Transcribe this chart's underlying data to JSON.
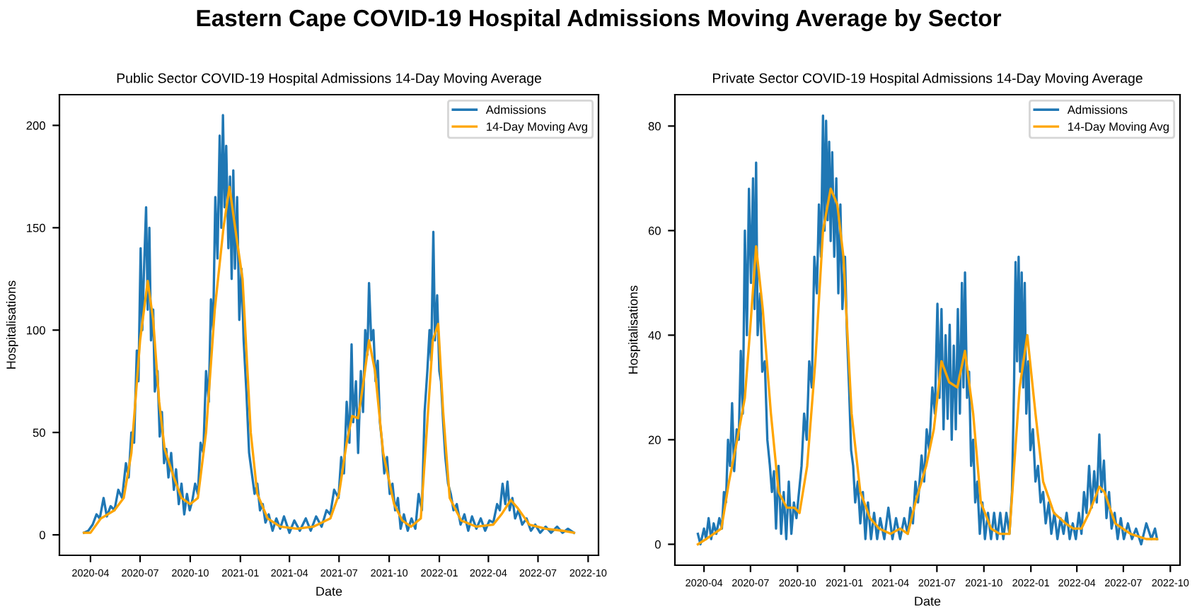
{
  "chart_data": [
    {
      "type": "other",
      "title": "Eastern Cape COVID-19 Hospital Admissions Moving Average by Sector"
    },
    {
      "type": "line",
      "title": "Public Sector COVID-19 Hospital Admissions 14-Day Moving Average",
      "xlabel": "Date",
      "ylabel": "Hospitalisations",
      "legend": "top right",
      "grid": false,
      "xlim": [
        "2020-02-04",
        "2022-10-20"
      ],
      "xticks": [
        "2020-04",
        "2020-07",
        "2020-10",
        "2021-01",
        "2021-04",
        "2021-07",
        "2021-10",
        "2022-01",
        "2022-04",
        "2022-07",
        "2022-10"
      ],
      "ylim": [
        -10,
        215
      ],
      "yticks": [
        0,
        50,
        100,
        150,
        200
      ],
      "series": [
        {
          "name": "Admissions",
          "color": "#1f77b4",
          "x": [
            "2020-03-20",
            "2020-03-28",
            "2020-04-05",
            "2020-04-12",
            "2020-04-18",
            "2020-04-25",
            "2020-05-01",
            "2020-05-08",
            "2020-05-15",
            "2020-05-22",
            "2020-05-29",
            "2020-06-05",
            "2020-06-10",
            "2020-06-15",
            "2020-06-20",
            "2020-06-25",
            "2020-06-28",
            "2020-07-02",
            "2020-07-05",
            "2020-07-08",
            "2020-07-12",
            "2020-07-15",
            "2020-07-18",
            "2020-07-21",
            "2020-07-25",
            "2020-07-28",
            "2020-08-02",
            "2020-08-06",
            "2020-08-10",
            "2020-08-14",
            "2020-08-18",
            "2020-08-22",
            "2020-08-27",
            "2020-09-01",
            "2020-09-05",
            "2020-09-10",
            "2020-09-15",
            "2020-09-20",
            "2020-09-25",
            "2020-09-30",
            "2020-10-05",
            "2020-10-10",
            "2020-10-15",
            "2020-10-20",
            "2020-10-25",
            "2020-10-30",
            "2020-11-04",
            "2020-11-08",
            "2020-11-12",
            "2020-11-16",
            "2020-11-20",
            "2020-11-24",
            "2020-11-27",
            "2020-11-30",
            "2020-12-03",
            "2020-12-06",
            "2020-12-10",
            "2020-12-13",
            "2020-12-16",
            "2020-12-19",
            "2020-12-22",
            "2020-12-26",
            "2020-12-30",
            "2021-01-03",
            "2021-01-07",
            "2021-01-12",
            "2021-01-17",
            "2021-01-22",
            "2021-01-27",
            "2021-02-01",
            "2021-02-06",
            "2021-02-11",
            "2021-02-16",
            "2021-02-22",
            "2021-03-01",
            "2021-03-08",
            "2021-03-15",
            "2021-03-22",
            "2021-04-01",
            "2021-04-10",
            "2021-04-20",
            "2021-05-01",
            "2021-05-10",
            "2021-05-20",
            "2021-05-30",
            "2021-06-08",
            "2021-06-15",
            "2021-06-22",
            "2021-06-30",
            "2021-07-05",
            "2021-07-10",
            "2021-07-15",
            "2021-07-20",
            "2021-07-24",
            "2021-07-27",
            "2021-08-01",
            "2021-08-05",
            "2021-08-10",
            "2021-08-14",
            "2021-08-18",
            "2021-08-22",
            "2021-08-25",
            "2021-08-29",
            "2021-09-02",
            "2021-09-06",
            "2021-09-10",
            "2021-09-14",
            "2021-09-18",
            "2021-09-22",
            "2021-09-27",
            "2021-10-02",
            "2021-10-07",
            "2021-10-12",
            "2021-10-17",
            "2021-10-22",
            "2021-10-28",
            "2021-11-04",
            "2021-11-11",
            "2021-11-18",
            "2021-11-24",
            "2021-11-30",
            "2021-12-05",
            "2021-12-10",
            "2021-12-14",
            "2021-12-17",
            "2021-12-21",
            "2021-12-24",
            "2021-12-28",
            "2022-01-01",
            "2022-01-04",
            "2022-01-08",
            "2022-01-12",
            "2022-01-17",
            "2022-01-22",
            "2022-01-27",
            "2022-02-02",
            "2022-02-09",
            "2022-02-16",
            "2022-02-23",
            "2022-03-02",
            "2022-03-10",
            "2022-03-18",
            "2022-03-26",
            "2022-04-03",
            "2022-04-10",
            "2022-04-17",
            "2022-04-22",
            "2022-04-27",
            "2022-05-02",
            "2022-05-06",
            "2022-05-10",
            "2022-05-15",
            "2022-05-20",
            "2022-05-26",
            "2022-06-02",
            "2022-06-10",
            "2022-06-18",
            "2022-06-26",
            "2022-07-05",
            "2022-07-15",
            "2022-07-25",
            "2022-08-05",
            "2022-08-15",
            "2022-08-25",
            "2022-09-05"
          ],
          "values": [
            1,
            2,
            5,
            10,
            8,
            18,
            9,
            14,
            12,
            22,
            18,
            35,
            28,
            50,
            45,
            90,
            75,
            140,
            100,
            128,
            160,
            110,
            150,
            95,
            110,
            70,
            80,
            48,
            60,
            35,
            42,
            28,
            40,
            22,
            32,
            15,
            25,
            10,
            20,
            12,
            17,
            25,
            20,
            45,
            40,
            80,
            65,
            115,
            100,
            165,
            135,
            195,
            150,
            205,
            160,
            190,
            140,
            175,
            125,
            178,
            130,
            165,
            105,
            130,
            95,
            70,
            40,
            30,
            20,
            25,
            12,
            15,
            6,
            10,
            2,
            8,
            3,
            9,
            1,
            7,
            2,
            8,
            2,
            9,
            4,
            12,
            10,
            22,
            18,
            38,
            30,
            65,
            45,
            93,
            55,
            75,
            40,
            80,
            60,
            100,
            88,
            123,
            95,
            100,
            75,
            85,
            55,
            45,
            30,
            38,
            20,
            25,
            12,
            18,
            3,
            10,
            2,
            8,
            3,
            20,
            12,
            60,
            80,
            100,
            85,
            148,
            95,
            117,
            80,
            75,
            55,
            38,
            25,
            20,
            12,
            15,
            5,
            10,
            2,
            9,
            3,
            8,
            2,
            7,
            6,
            15,
            12,
            25,
            15,
            26,
            12,
            18,
            8,
            12,
            5,
            8,
            2,
            5,
            1,
            4,
            1,
            4,
            1,
            3,
            1
          ]
        },
        {
          "name": "14-Day Moving Avg",
          "color": "#ffa500",
          "x": [
            "2020-03-20",
            "2020-04-01",
            "2020-04-20",
            "2020-05-15",
            "2020-06-01",
            "2020-06-15",
            "2020-07-01",
            "2020-07-15",
            "2020-07-25",
            "2020-08-05",
            "2020-08-15",
            "2020-09-01",
            "2020-09-15",
            "2020-10-01",
            "2020-10-15",
            "2020-10-30",
            "2020-11-15",
            "2020-12-01",
            "2020-12-12",
            "2020-12-25",
            "2021-01-05",
            "2021-01-20",
            "2021-02-01",
            "2021-02-20",
            "2021-03-15",
            "2021-04-15",
            "2021-05-15",
            "2021-06-15",
            "2021-07-01",
            "2021-07-15",
            "2021-07-25",
            "2021-08-05",
            "2021-08-15",
            "2021-08-25",
            "2021-09-05",
            "2021-09-20",
            "2021-10-10",
            "2021-10-25",
            "2021-11-10",
            "2021-11-28",
            "2021-12-10",
            "2021-12-20",
            "2021-12-30",
            "2022-01-08",
            "2022-01-20",
            "2022-02-10",
            "2022-03-10",
            "2022-04-10",
            "2022-04-25",
            "2022-05-12",
            "2022-05-25",
            "2022-06-15",
            "2022-07-15",
            "2022-08-15",
            "2022-09-05"
          ],
          "values": [
            1,
            1,
            8,
            12,
            18,
            40,
            95,
            124,
            105,
            65,
            42,
            28,
            18,
            15,
            18,
            50,
            110,
            150,
            170,
            145,
            125,
            50,
            20,
            8,
            4,
            3,
            4,
            8,
            20,
            45,
            58,
            57,
            75,
            95,
            80,
            40,
            15,
            7,
            4,
            8,
            55,
            95,
            103,
            60,
            18,
            7,
            4,
            5,
            10,
            17,
            13,
            5,
            3,
            2,
            1
          ]
        }
      ]
    },
    {
      "type": "line",
      "title": "Private Sector COVID-19 Hospital Admissions 14-Day Moving Average",
      "xlabel": "Date",
      "ylabel": "Hospitalisations",
      "legend": "top right",
      "grid": false,
      "xlim": [
        "2020-02-04",
        "2022-10-20"
      ],
      "xticks": [
        "2020-04",
        "2020-07",
        "2020-10",
        "2021-01",
        "2021-04",
        "2021-07",
        "2021-10",
        "2022-01",
        "2022-04",
        "2022-07",
        "2022-10"
      ],
      "ylim": [
        -4,
        86
      ],
      "yticks": [
        0,
        20,
        40,
        60,
        80
      ],
      "series": [
        {
          "name": "Admissions",
          "color": "#1f77b4",
          "x": [
            "2020-03-20",
            "2020-03-25",
            "2020-04-01",
            "2020-04-05",
            "2020-04-10",
            "2020-04-15",
            "2020-04-20",
            "2020-04-25",
            "2020-05-01",
            "2020-05-06",
            "2020-05-10",
            "2020-05-14",
            "2020-05-18",
            "2020-05-22",
            "2020-05-26",
            "2020-05-30",
            "2020-06-04",
            "2020-06-08",
            "2020-06-12",
            "2020-06-16",
            "2020-06-20",
            "2020-06-24",
            "2020-06-28",
            "2020-07-02",
            "2020-07-06",
            "2020-07-09",
            "2020-07-12",
            "2020-07-15",
            "2020-07-20",
            "2020-07-24",
            "2020-07-29",
            "2020-08-03",
            "2020-08-08",
            "2020-08-12",
            "2020-08-16",
            "2020-08-20",
            "2020-08-25",
            "2020-08-30",
            "2020-09-04",
            "2020-09-09",
            "2020-09-14",
            "2020-09-19",
            "2020-09-24",
            "2020-09-29",
            "2020-10-04",
            "2020-10-09",
            "2020-10-14",
            "2020-10-19",
            "2020-10-24",
            "2020-10-29",
            "2020-11-03",
            "2020-11-08",
            "2020-11-12",
            "2020-11-16",
            "2020-11-20",
            "2020-11-23",
            "2020-11-26",
            "2020-11-29",
            "2020-12-02",
            "2020-12-05",
            "2020-12-08",
            "2020-12-12",
            "2020-12-16",
            "2020-12-20",
            "2020-12-24",
            "2020-12-28",
            "2021-01-02",
            "2021-01-06",
            "2021-01-10",
            "2021-01-14",
            "2021-01-18",
            "2021-01-22",
            "2021-01-27",
            "2021-02-01",
            "2021-02-06",
            "2021-02-11",
            "2021-02-16",
            "2021-02-22",
            "2021-02-28",
            "2021-03-06",
            "2021-03-12",
            "2021-03-20",
            "2021-03-28",
            "2021-04-05",
            "2021-04-12",
            "2021-04-20",
            "2021-04-28",
            "2021-05-05",
            "2021-05-10",
            "2021-05-15",
            "2021-05-20",
            "2021-05-25",
            "2021-06-01",
            "2021-06-06",
            "2021-06-11",
            "2021-06-16",
            "2021-06-22",
            "2021-06-27",
            "2021-07-02",
            "2021-07-06",
            "2021-07-10",
            "2021-07-14",
            "2021-07-18",
            "2021-07-22",
            "2021-07-26",
            "2021-07-30",
            "2021-08-03",
            "2021-08-07",
            "2021-08-11",
            "2021-08-15",
            "2021-08-19",
            "2021-08-22",
            "2021-08-25",
            "2021-08-29",
            "2021-09-02",
            "2021-09-06",
            "2021-09-10",
            "2021-09-14",
            "2021-09-18",
            "2021-09-23",
            "2021-09-28",
            "2021-10-03",
            "2021-10-09",
            "2021-10-15",
            "2021-10-21",
            "2021-10-27",
            "2021-11-02",
            "2021-11-08",
            "2021-11-14",
            "2021-11-20",
            "2021-11-25",
            "2021-11-29",
            "2021-12-02",
            "2021-12-05",
            "2021-12-08",
            "2021-12-11",
            "2021-12-14",
            "2021-12-17",
            "2021-12-20",
            "2021-12-23",
            "2021-12-27",
            "2021-12-31",
            "2022-01-05",
            "2022-01-10",
            "2022-01-15",
            "2022-01-20",
            "2022-01-25",
            "2022-01-30",
            "2022-02-05",
            "2022-02-10",
            "2022-02-16",
            "2022-02-22",
            "2022-02-28",
            "2022-03-06",
            "2022-03-12",
            "2022-03-18",
            "2022-03-24",
            "2022-03-30",
            "2022-04-05",
            "2022-04-10",
            "2022-04-15",
            "2022-04-20",
            "2022-04-25",
            "2022-04-30",
            "2022-05-05",
            "2022-05-10",
            "2022-05-15",
            "2022-05-19",
            "2022-05-24",
            "2022-05-29",
            "2022-06-03",
            "2022-06-08",
            "2022-06-14",
            "2022-06-20",
            "2022-06-26",
            "2022-07-02",
            "2022-07-10",
            "2022-07-18",
            "2022-07-26",
            "2022-08-05",
            "2022-08-15",
            "2022-08-25",
            "2022-09-01",
            "2022-09-05"
          ],
          "values": [
            2,
            0,
            3,
            1,
            5,
            1,
            4,
            2,
            5,
            3,
            10,
            8,
            20,
            15,
            27,
            14,
            22,
            20,
            37,
            25,
            60,
            40,
            68,
            50,
            70,
            45,
            73,
            40,
            48,
            33,
            35,
            20,
            15,
            10,
            14,
            3,
            15,
            2,
            10,
            1,
            12,
            2,
            8,
            5,
            10,
            15,
            25,
            20,
            35,
            30,
            55,
            48,
            65,
            55,
            82,
            60,
            81,
            62,
            77,
            58,
            75,
            55,
            70,
            48,
            65,
            45,
            55,
            40,
            30,
            18,
            15,
            8,
            12,
            4,
            10,
            1,
            8,
            1,
            6,
            1,
            5,
            1,
            7,
            1,
            5,
            1,
            5,
            2,
            7,
            4,
            12,
            8,
            17,
            12,
            22,
            18,
            30,
            25,
            46,
            28,
            45,
            22,
            40,
            24,
            42,
            20,
            38,
            22,
            45,
            25,
            50,
            30,
            52,
            28,
            33,
            15,
            20,
            8,
            12,
            2,
            8,
            1,
            6,
            1,
            6,
            1,
            6,
            1,
            6,
            2,
            10,
            30,
            54,
            35,
            55,
            33,
            52,
            30,
            50,
            25,
            35,
            18,
            22,
            12,
            15,
            8,
            10,
            4,
            8,
            2,
            6,
            1,
            5,
            2,
            6,
            1,
            4,
            1,
            6,
            2,
            10,
            6,
            15,
            7,
            14,
            8,
            21,
            10,
            16,
            5,
            10,
            3,
            6,
            1,
            5,
            1,
            4,
            1,
            3,
            0,
            4,
            1,
            3,
            1
          ]
        },
        {
          "name": "14-Day Moving Avg",
          "color": "#ffa500",
          "x": [
            "2020-03-20",
            "2020-04-05",
            "2020-04-20",
            "2020-05-05",
            "2020-05-20",
            "2020-06-05",
            "2020-06-20",
            "2020-07-01",
            "2020-07-12",
            "2020-07-25",
            "2020-08-10",
            "2020-08-25",
            "2020-09-10",
            "2020-09-25",
            "2020-10-05",
            "2020-10-20",
            "2020-11-05",
            "2020-11-20",
            "2020-12-05",
            "2020-12-18",
            "2020-12-30",
            "2021-01-15",
            "2021-02-01",
            "2021-02-20",
            "2021-03-10",
            "2021-04-01",
            "2021-04-20",
            "2021-05-05",
            "2021-05-20",
            "2021-06-10",
            "2021-06-25",
            "2021-07-10",
            "2021-07-25",
            "2021-08-10",
            "2021-08-25",
            "2021-09-10",
            "2021-09-25",
            "2021-10-15",
            "2021-11-01",
            "2021-11-20",
            "2021-12-10",
            "2021-12-25",
            "2022-01-10",
            "2022-01-25",
            "2022-02-15",
            "2022-03-10",
            "2022-03-25",
            "2022-04-10",
            "2022-04-25",
            "2022-05-15",
            "2022-05-25",
            "2022-06-15",
            "2022-07-15",
            "2022-08-15",
            "2022-09-05"
          ],
          "values": [
            0,
            1,
            2,
            3,
            12,
            20,
            28,
            42,
            57,
            45,
            25,
            10,
            7,
            7,
            6,
            15,
            35,
            60,
            68,
            65,
            55,
            25,
            10,
            5,
            3,
            2,
            3,
            2,
            8,
            15,
            22,
            35,
            31,
            30,
            37,
            25,
            8,
            3,
            2,
            2,
            30,
            40,
            25,
            12,
            6,
            4,
            3,
            3,
            6,
            11,
            10,
            4,
            2,
            1,
            1
          ]
        }
      ]
    }
  ]
}
